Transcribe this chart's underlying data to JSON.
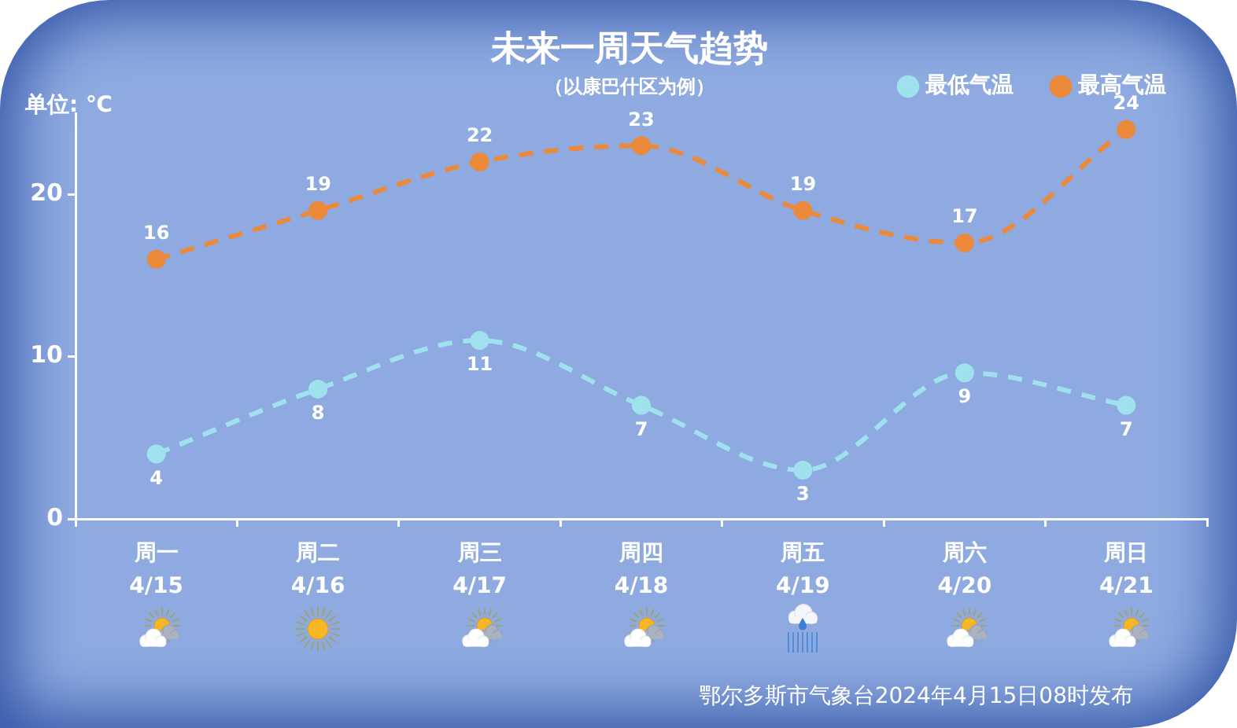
{
  "chart_data": {
    "type": "line",
    "title": "未来一周天气趋势",
    "subtitle": "（以康巴什区为例）",
    "ylabel": "单位: ℃",
    "categories": [
      "周一\n4/15",
      "周二\n4/16",
      "周三\n4/17",
      "周四\n4/18",
      "周五\n4/19",
      "周六\n4/20",
      "周日\n4/21"
    ],
    "series": [
      {
        "name": "最低气温",
        "color": "#9fe2ee",
        "values": [
          4,
          8,
          11,
          7,
          3,
          9,
          7
        ]
      },
      {
        "name": "最高气温",
        "color": "#ec8a3c",
        "values": [
          16,
          19,
          22,
          23,
          19,
          17,
          24
        ]
      }
    ],
    "ylim": [
      0,
      25
    ],
    "yticks": [
      0,
      10,
      20
    ],
    "grid": false,
    "legend": "top right",
    "marker": "circle",
    "line_style": "dashed",
    "data_labels": true,
    "annotations": [
      "鄂尔多斯市气象台2024年4月15日08时发布"
    ]
  }
}
